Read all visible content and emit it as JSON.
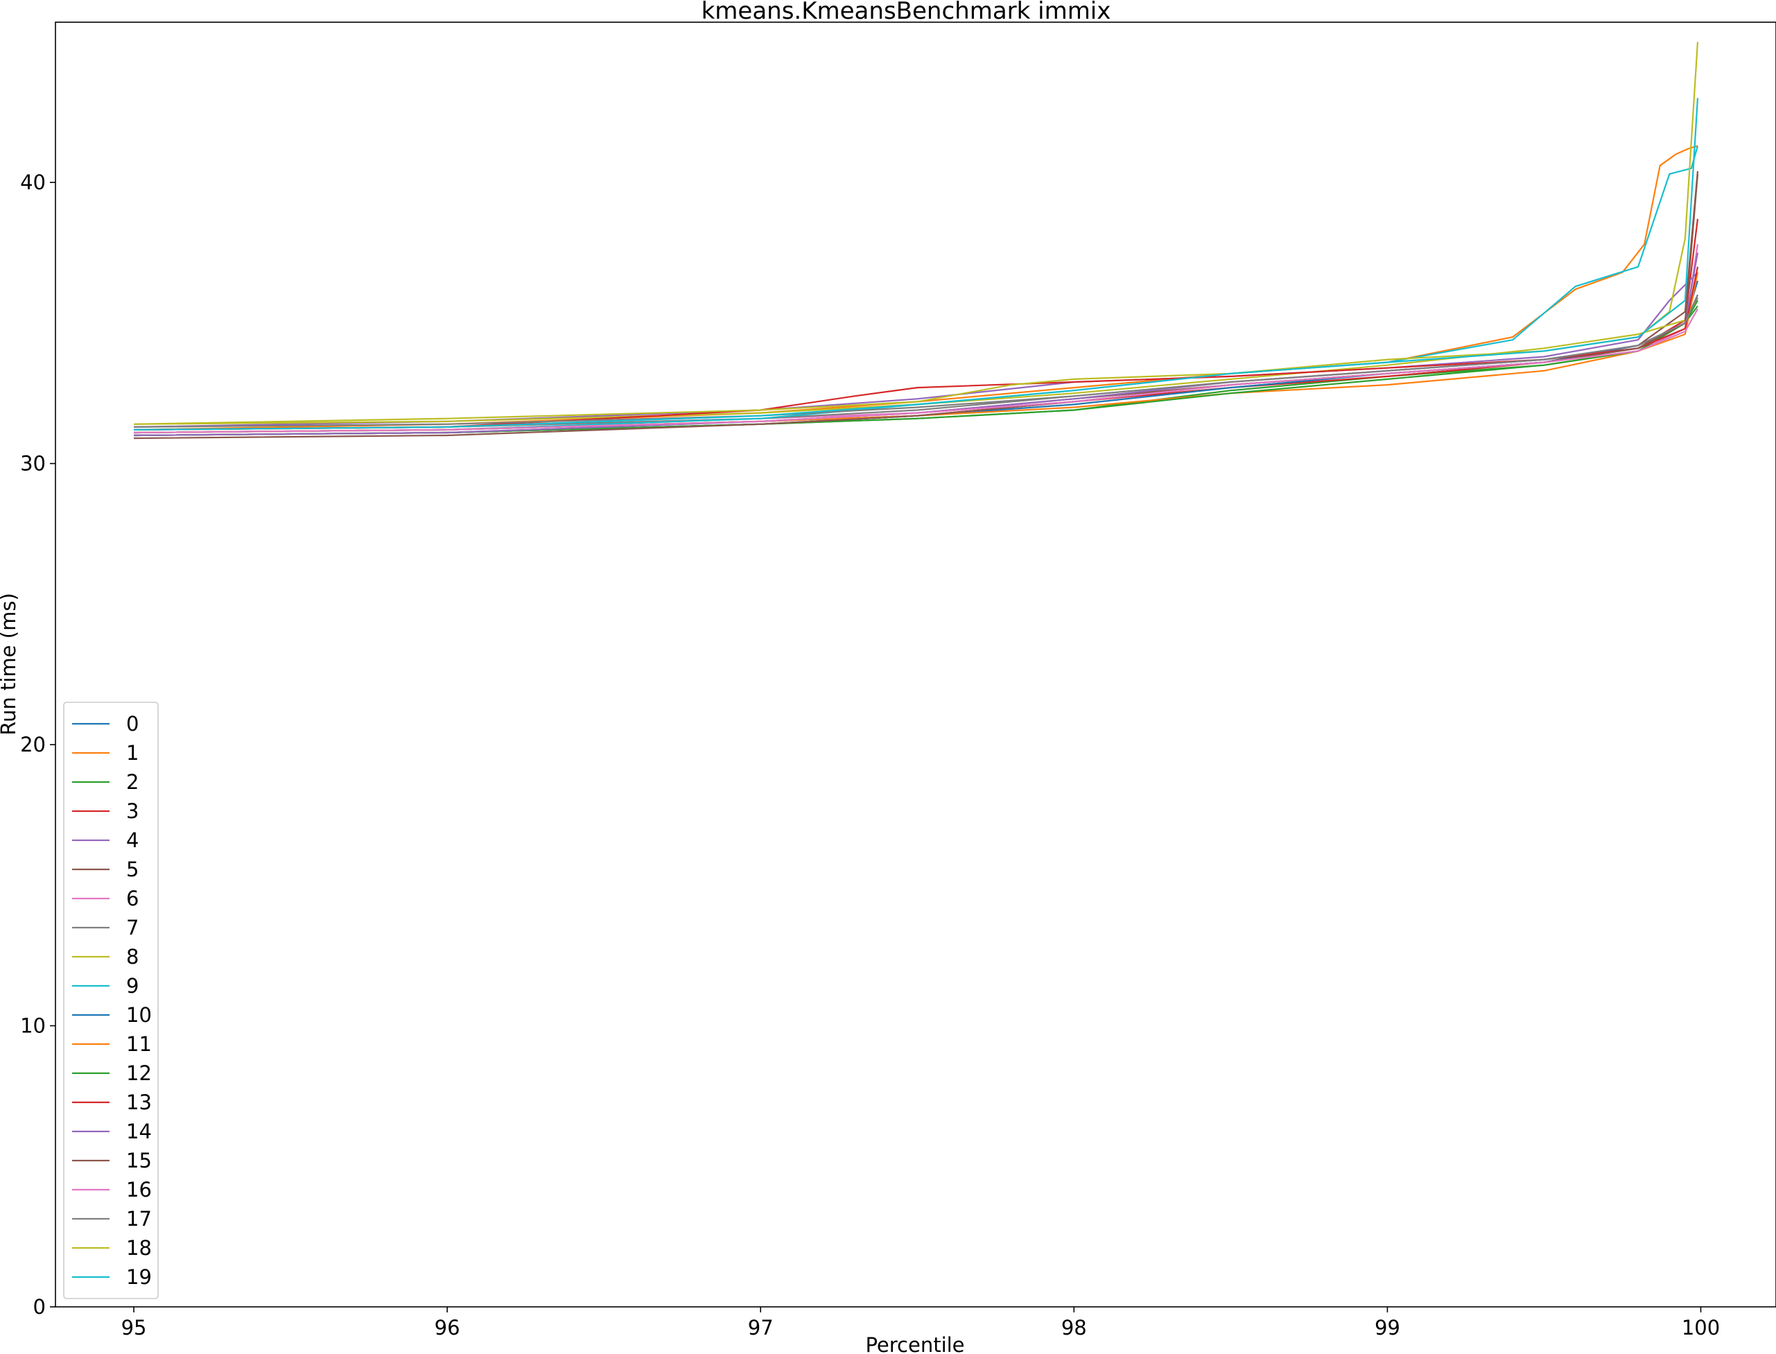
{
  "chart_data": {
    "type": "line",
    "title": "kmeans.KmeansBenchmark immix",
    "xlabel": "Percentile",
    "ylabel": "Run time (ms)",
    "xlim": [
      94.75,
      100.24
    ],
    "ylim": [
      0,
      45.7
    ],
    "xticks": [
      "95",
      "96",
      "97",
      "98",
      "99",
      "100"
    ],
    "yticks": [
      "0",
      "10",
      "20",
      "30",
      "40"
    ],
    "legend_position": "lower-left",
    "grid": false,
    "colors": [
      "#1f77b4",
      "#ff7f0e",
      "#2ca02c",
      "#d62728",
      "#9467bd",
      "#8c564b",
      "#e377c2",
      "#7f7f7f",
      "#bcbd22",
      "#17becf"
    ],
    "series": [
      {
        "name": "0",
        "x": [
          95,
          96,
          97,
          97.5,
          98,
          98.5,
          99,
          99.5,
          99.8,
          99.95,
          99.99
        ],
        "y": [
          31.1,
          31.2,
          31.5,
          31.7,
          32.2,
          32.8,
          33.2,
          33.6,
          34.2,
          35.0,
          36.0
        ]
      },
      {
        "name": "1",
        "x": [
          95,
          96,
          97,
          97.5,
          98,
          98.5,
          99,
          99.4,
          99.6,
          99.75,
          99.82,
          99.87,
          99.92,
          99.96,
          99.99
        ],
        "y": [
          31.2,
          31.4,
          31.8,
          32.2,
          32.7,
          33.2,
          33.6,
          34.5,
          36.2,
          36.8,
          37.8,
          40.6,
          41.0,
          41.2,
          41.3
        ]
      },
      {
        "name": "2",
        "x": [
          95,
          96,
          97,
          97.5,
          98,
          98.5,
          99,
          99.5,
          99.8,
          99.95,
          99.99
        ],
        "y": [
          31.0,
          31.1,
          31.4,
          31.6,
          31.9,
          32.6,
          33.1,
          33.5,
          34.0,
          35.0,
          35.6
        ]
      },
      {
        "name": "3",
        "x": [
          95,
          96,
          97,
          97.5,
          98,
          98.5,
          99,
          99.5,
          99.8,
          99.95,
          99.99
        ],
        "y": [
          31.0,
          31.1,
          31.4,
          31.7,
          32.2,
          32.7,
          33.1,
          33.6,
          34.1,
          35.1,
          38.7
        ]
      },
      {
        "name": "4",
        "x": [
          95,
          96,
          97,
          97.5,
          98,
          98.5,
          99,
          99.5,
          99.8,
          99.9,
          99.99
        ],
        "y": [
          31.3,
          31.5,
          31.9,
          32.3,
          32.9,
          33.1,
          33.4,
          33.8,
          34.4,
          35.8,
          36.8
        ]
      },
      {
        "name": "5",
        "x": [
          95,
          96,
          97,
          97.5,
          98,
          98.5,
          99,
          99.5,
          99.8,
          99.95,
          99.99
        ],
        "y": [
          31.1,
          31.2,
          31.5,
          31.8,
          32.3,
          32.8,
          33.2,
          33.6,
          34.2,
          35.4,
          40.4
        ]
      },
      {
        "name": "6",
        "x": [
          95,
          96,
          97,
          97.5,
          98,
          98.5,
          99,
          99.5,
          99.8,
          99.95,
          99.99
        ],
        "y": [
          31.2,
          31.3,
          31.6,
          31.8,
          32.2,
          32.8,
          33.2,
          33.6,
          34.0,
          34.8,
          37.8
        ]
      },
      {
        "name": "7",
        "x": [
          95,
          96,
          97,
          97.5,
          98,
          98.5,
          99,
          99.5,
          99.8,
          99.95,
          99.99
        ],
        "y": [
          31.2,
          31.3,
          31.6,
          31.9,
          32.4,
          32.9,
          33.3,
          33.7,
          34.1,
          35.0,
          35.9
        ]
      },
      {
        "name": "8",
        "x": [
          95,
          96,
          97,
          97.5,
          98,
          98.5,
          99,
          99.5,
          99.8,
          99.95,
          99.99
        ],
        "y": [
          31.4,
          31.5,
          31.8,
          32.1,
          32.5,
          33.0,
          33.5,
          34.1,
          34.6,
          35.1,
          35.8
        ]
      },
      {
        "name": "9",
        "x": [
          95,
          96,
          97,
          97.5,
          98,
          98.5,
          99,
          99.4,
          99.6,
          99.8,
          99.9,
          99.97,
          99.99
        ],
        "y": [
          31.1,
          31.2,
          31.6,
          32.1,
          32.6,
          33.2,
          33.6,
          34.4,
          36.3,
          37.0,
          40.3,
          40.5,
          41.3
        ]
      },
      {
        "name": "10",
        "x": [
          95,
          96,
          97,
          97.5,
          98,
          98.5,
          99,
          99.5,
          99.8,
          99.95,
          99.99
        ],
        "y": [
          31.0,
          31.1,
          31.4,
          31.7,
          32.1,
          32.7,
          33.2,
          33.6,
          34.2,
          35.0,
          36.5
        ]
      },
      {
        "name": "11",
        "x": [
          95,
          96,
          97,
          97.5,
          98,
          98.5,
          99,
          99.5,
          99.8,
          99.95,
          99.99
        ],
        "y": [
          31.1,
          31.2,
          31.5,
          31.7,
          32.0,
          32.5,
          32.8,
          33.3,
          34.0,
          34.6,
          36.8
        ]
      },
      {
        "name": "12",
        "x": [
          95,
          96,
          97,
          97.5,
          98,
          98.5,
          99,
          99.5,
          99.8,
          99.95,
          99.99
        ],
        "y": [
          31.0,
          31.1,
          31.4,
          31.6,
          31.9,
          32.5,
          33.0,
          33.5,
          34.0,
          35.0,
          35.8
        ]
      },
      {
        "name": "13",
        "x": [
          95,
          96,
          97,
          97.3,
          97.5,
          98,
          98.5,
          99,
          99.5,
          99.8,
          99.95,
          99.99
        ],
        "y": [
          31.2,
          31.3,
          31.9,
          32.4,
          32.7,
          32.9,
          33.1,
          33.4,
          33.7,
          34.1,
          34.8,
          37.0
        ]
      },
      {
        "name": "14",
        "x": [
          95,
          96,
          97,
          97.5,
          98,
          98.5,
          99,
          99.5,
          99.8,
          99.95,
          99.99
        ],
        "y": [
          31.0,
          31.1,
          31.5,
          31.8,
          32.3,
          32.9,
          33.3,
          33.7,
          34.2,
          35.0,
          37.5
        ]
      },
      {
        "name": "15",
        "x": [
          95,
          96,
          97,
          97.5,
          98,
          98.5,
          99,
          99.5,
          99.8,
          99.95,
          99.99
        ],
        "y": [
          30.9,
          31.0,
          31.4,
          31.7,
          32.2,
          32.8,
          33.2,
          33.6,
          34.1,
          35.0,
          40.3
        ]
      },
      {
        "name": "16",
        "x": [
          95,
          96,
          97,
          97.5,
          98,
          98.5,
          99,
          99.5,
          99.8,
          99.95,
          99.99
        ],
        "y": [
          31.1,
          31.2,
          31.5,
          31.8,
          32.2,
          32.8,
          33.2,
          33.6,
          34.0,
          34.7,
          35.5
        ]
      },
      {
        "name": "17",
        "x": [
          95,
          96,
          97,
          97.5,
          98,
          98.5,
          99,
          99.5,
          99.8,
          99.95,
          99.99
        ],
        "y": [
          31.3,
          31.4,
          31.7,
          32.0,
          32.4,
          32.9,
          33.3,
          33.7,
          34.2,
          35.0,
          36.0
        ]
      },
      {
        "name": "18",
        "x": [
          95,
          96,
          97,
          97.5,
          97.8,
          98,
          98.5,
          99,
          99.5,
          99.8,
          99.9,
          99.95,
          99.99
        ],
        "y": [
          31.4,
          31.6,
          31.9,
          32.2,
          32.8,
          33.0,
          33.2,
          33.7,
          34.0,
          34.5,
          35.4,
          38.0,
          45.0
        ]
      },
      {
        "name": "19",
        "x": [
          95,
          96,
          97,
          97.5,
          98,
          98.5,
          99,
          99.5,
          99.8,
          99.95,
          99.99
        ],
        "y": [
          31.2,
          31.3,
          31.7,
          32.1,
          32.6,
          33.2,
          33.6,
          34.0,
          34.5,
          35.8,
          43.0
        ]
      }
    ]
  }
}
